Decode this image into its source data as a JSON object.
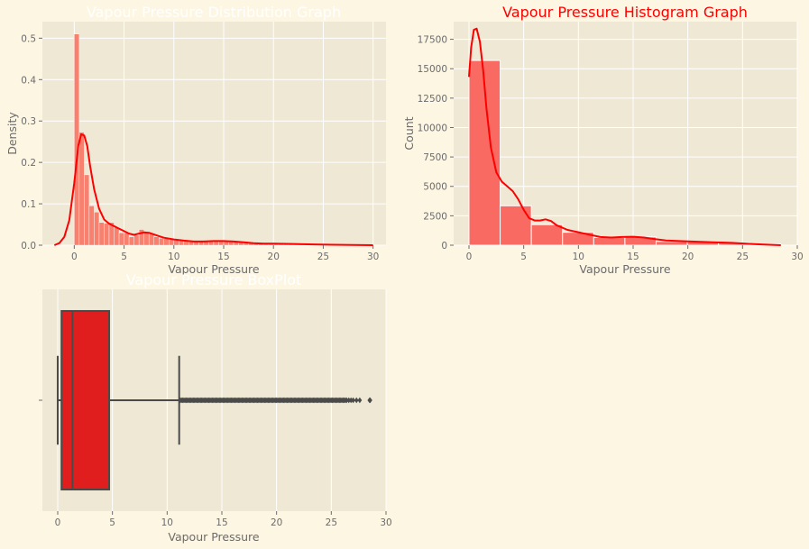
{
  "figure": {
    "background": "#fdf6e3",
    "panel_bg": "#eee8d5",
    "grid_color": "#ffffff",
    "text_color": "#6b6b6b"
  },
  "chart_data": [
    {
      "type": "bar",
      "subtype": "density-histogram-with-kde",
      "title": "Vapour Pressure Distribution Graph",
      "title_color": "#ffffff",
      "xlabel": "Vapour Pressure",
      "ylabel": "Density",
      "xlim": [
        -3.2,
        31.3
      ],
      "ylim": [
        0,
        0.54
      ],
      "xticks": [
        0,
        5,
        10,
        15,
        20,
        25,
        30
      ],
      "yticks": [
        0.0,
        0.1,
        0.2,
        0.3,
        0.4,
        0.5
      ],
      "ytick_labels": [
        "0.0",
        "0.1",
        "0.2",
        "0.3",
        "0.4",
        "0.5"
      ],
      "grid": true,
      "bar_color": "#f8806e",
      "line_color": "#ff0000",
      "bin_width": 0.5,
      "bins": [
        {
          "x": 0.0,
          "v": 0.51
        },
        {
          "x": 0.5,
          "v": 0.273
        },
        {
          "x": 1.0,
          "v": 0.17
        },
        {
          "x": 1.5,
          "v": 0.095
        },
        {
          "x": 2.0,
          "v": 0.08
        },
        {
          "x": 2.5,
          "v": 0.055
        },
        {
          "x": 3.0,
          "v": 0.053
        },
        {
          "x": 3.5,
          "v": 0.055
        },
        {
          "x": 4.0,
          "v": 0.043
        },
        {
          "x": 4.5,
          "v": 0.03
        },
        {
          "x": 5.0,
          "v": 0.03
        },
        {
          "x": 5.5,
          "v": 0.02
        },
        {
          "x": 6.0,
          "v": 0.024
        },
        {
          "x": 6.5,
          "v": 0.038
        },
        {
          "x": 7.0,
          "v": 0.03
        },
        {
          "x": 7.5,
          "v": 0.028
        },
        {
          "x": 8.0,
          "v": 0.02
        },
        {
          "x": 8.5,
          "v": 0.017
        },
        {
          "x": 9.0,
          "v": 0.016
        },
        {
          "x": 9.5,
          "v": 0.014
        },
        {
          "x": 10.0,
          "v": 0.012
        },
        {
          "x": 10.5,
          "v": 0.011
        },
        {
          "x": 11.0,
          "v": 0.01
        },
        {
          "x": 11.5,
          "v": 0.009
        },
        {
          "x": 12.0,
          "v": 0.009
        },
        {
          "x": 12.5,
          "v": 0.008
        },
        {
          "x": 13.0,
          "v": 0.009
        },
        {
          "x": 13.5,
          "v": 0.01
        },
        {
          "x": 14.0,
          "v": 0.01
        },
        {
          "x": 14.5,
          "v": 0.011
        },
        {
          "x": 15.0,
          "v": 0.01
        },
        {
          "x": 15.5,
          "v": 0.01
        },
        {
          "x": 16.0,
          "v": 0.009
        },
        {
          "x": 16.5,
          "v": 0.008
        },
        {
          "x": 17.0,
          "v": 0.007
        },
        {
          "x": 17.5,
          "v": 0.006
        },
        {
          "x": 18.0,
          "v": 0.005
        },
        {
          "x": 18.5,
          "v": 0.005
        },
        {
          "x": 19.0,
          "v": 0.004
        },
        {
          "x": 19.5,
          "v": 0.004
        },
        {
          "x": 20.0,
          "v": 0.004
        },
        {
          "x": 20.5,
          "v": 0.003
        },
        {
          "x": 21.0,
          "v": 0.003
        },
        {
          "x": 21.5,
          "v": 0.003
        },
        {
          "x": 22.0,
          "v": 0.002
        },
        {
          "x": 22.5,
          "v": 0.002
        },
        {
          "x": 23.0,
          "v": 0.002
        },
        {
          "x": 23.5,
          "v": 0.002
        },
        {
          "x": 24.0,
          "v": 0.002
        },
        {
          "x": 24.5,
          "v": 0.001
        },
        {
          "x": 25.0,
          "v": 0.001
        },
        {
          "x": 25.5,
          "v": 0.001
        },
        {
          "x": 26.0,
          "v": 0.001
        },
        {
          "x": 26.5,
          "v": 0.001
        },
        {
          "x": 27.0,
          "v": 0.0005
        },
        {
          "x": 27.5,
          "v": 0.0005
        },
        {
          "x": 28.0,
          "v": 0.0005
        }
      ],
      "kde": [
        [
          -2.0,
          0.0
        ],
        [
          -1.5,
          0.005
        ],
        [
          -1.0,
          0.02
        ],
        [
          -0.5,
          0.06
        ],
        [
          0.0,
          0.15
        ],
        [
          0.4,
          0.24
        ],
        [
          0.7,
          0.268
        ],
        [
          1.0,
          0.265
        ],
        [
          1.3,
          0.24
        ],
        [
          1.6,
          0.19
        ],
        [
          2.0,
          0.135
        ],
        [
          2.5,
          0.088
        ],
        [
          3.0,
          0.062
        ],
        [
          3.5,
          0.052
        ],
        [
          4.0,
          0.046
        ],
        [
          4.5,
          0.04
        ],
        [
          5.0,
          0.034
        ],
        [
          5.5,
          0.028
        ],
        [
          6.0,
          0.025
        ],
        [
          6.5,
          0.028
        ],
        [
          7.0,
          0.031
        ],
        [
          7.5,
          0.03
        ],
        [
          8.0,
          0.026
        ],
        [
          8.5,
          0.022
        ],
        [
          9.0,
          0.018
        ],
        [
          10.0,
          0.014
        ],
        [
          11.0,
          0.011
        ],
        [
          12.0,
          0.009
        ],
        [
          13.0,
          0.009
        ],
        [
          14.0,
          0.01
        ],
        [
          15.0,
          0.01
        ],
        [
          16.0,
          0.009
        ],
        [
          17.0,
          0.007
        ],
        [
          18.0,
          0.005
        ],
        [
          19.0,
          0.004
        ],
        [
          20.0,
          0.004
        ],
        [
          22.0,
          0.003
        ],
        [
          24.0,
          0.002
        ],
        [
          26.0,
          0.001
        ],
        [
          28.0,
          0.0005
        ],
        [
          30.0,
          0.0
        ]
      ]
    },
    {
      "type": "bar",
      "subtype": "count-histogram-with-kde",
      "title": "Vapour Pressure Histogram Graph",
      "title_color": "#ff0000",
      "xlabel": "Vapour Pressure",
      "ylabel": "Count",
      "xlim": [
        -1.4,
        30.0
      ],
      "ylim": [
        0,
        19000
      ],
      "xticks": [
        0,
        5,
        10,
        15,
        20,
        25,
        30
      ],
      "yticks": [
        0,
        2500,
        5000,
        7500,
        10000,
        12500,
        15000,
        17500
      ],
      "grid": true,
      "bar_color": "#f86a62",
      "line_color": "#ff0000",
      "bin_width": 2.85,
      "bins": [
        {
          "x": 0.0,
          "v": 15700
        },
        {
          "x": 2.85,
          "v": 3350
        },
        {
          "x": 5.7,
          "v": 1750
        },
        {
          "x": 8.55,
          "v": 1100
        },
        {
          "x": 11.4,
          "v": 650
        },
        {
          "x": 14.25,
          "v": 700
        },
        {
          "x": 17.1,
          "v": 320
        },
        {
          "x": 19.95,
          "v": 300
        },
        {
          "x": 22.8,
          "v": 220
        },
        {
          "x": 25.65,
          "v": 100
        }
      ],
      "kde": [
        [
          0.0,
          14300
        ],
        [
          0.2,
          16800
        ],
        [
          0.45,
          18300
        ],
        [
          0.7,
          18400
        ],
        [
          1.0,
          17300
        ],
        [
          1.3,
          14800
        ],
        [
          1.6,
          11600
        ],
        [
          2.0,
          8300
        ],
        [
          2.5,
          6200
        ],
        [
          3.0,
          5400
        ],
        [
          3.5,
          5000
        ],
        [
          4.0,
          4600
        ],
        [
          4.5,
          3900
        ],
        [
          5.0,
          3000
        ],
        [
          5.5,
          2300
        ],
        [
          6.0,
          2100
        ],
        [
          6.5,
          2100
        ],
        [
          7.0,
          2200
        ],
        [
          7.5,
          2050
        ],
        [
          8.0,
          1700
        ],
        [
          9.0,
          1300
        ],
        [
          10.0,
          1100
        ],
        [
          11.0,
          900
        ],
        [
          12.0,
          700
        ],
        [
          13.0,
          650
        ],
        [
          14.0,
          700
        ],
        [
          15.0,
          720
        ],
        [
          16.0,
          650
        ],
        [
          17.0,
          520
        ],
        [
          18.0,
          400
        ],
        [
          20.0,
          330
        ],
        [
          22.0,
          260
        ],
        [
          24.0,
          200
        ],
        [
          26.0,
          90
        ],
        [
          28.0,
          20
        ],
        [
          28.5,
          0
        ]
      ]
    },
    {
      "type": "boxplot",
      "title": "Vapour Pressure BoxPlot",
      "title_color": "#ffffff",
      "xlabel": "Vapour Pressure",
      "ylabel": "",
      "xlim": [
        -1.4,
        30.0
      ],
      "xticks": [
        0,
        5,
        10,
        15,
        20,
        25,
        30
      ],
      "grid": true,
      "box_color": "#e01e1e",
      "edge_color": "#4a4a4a",
      "whisker_low": 0.0,
      "q1": 0.35,
      "median": 1.35,
      "q3": 4.7,
      "whisker_high": 11.1,
      "outliers_dense_from": 11.2,
      "outliers_dense_to": 26.4,
      "outliers_sparse": [
        26.6,
        26.8,
        27.0,
        27.3,
        27.6,
        28.5,
        28.55
      ]
    }
  ]
}
